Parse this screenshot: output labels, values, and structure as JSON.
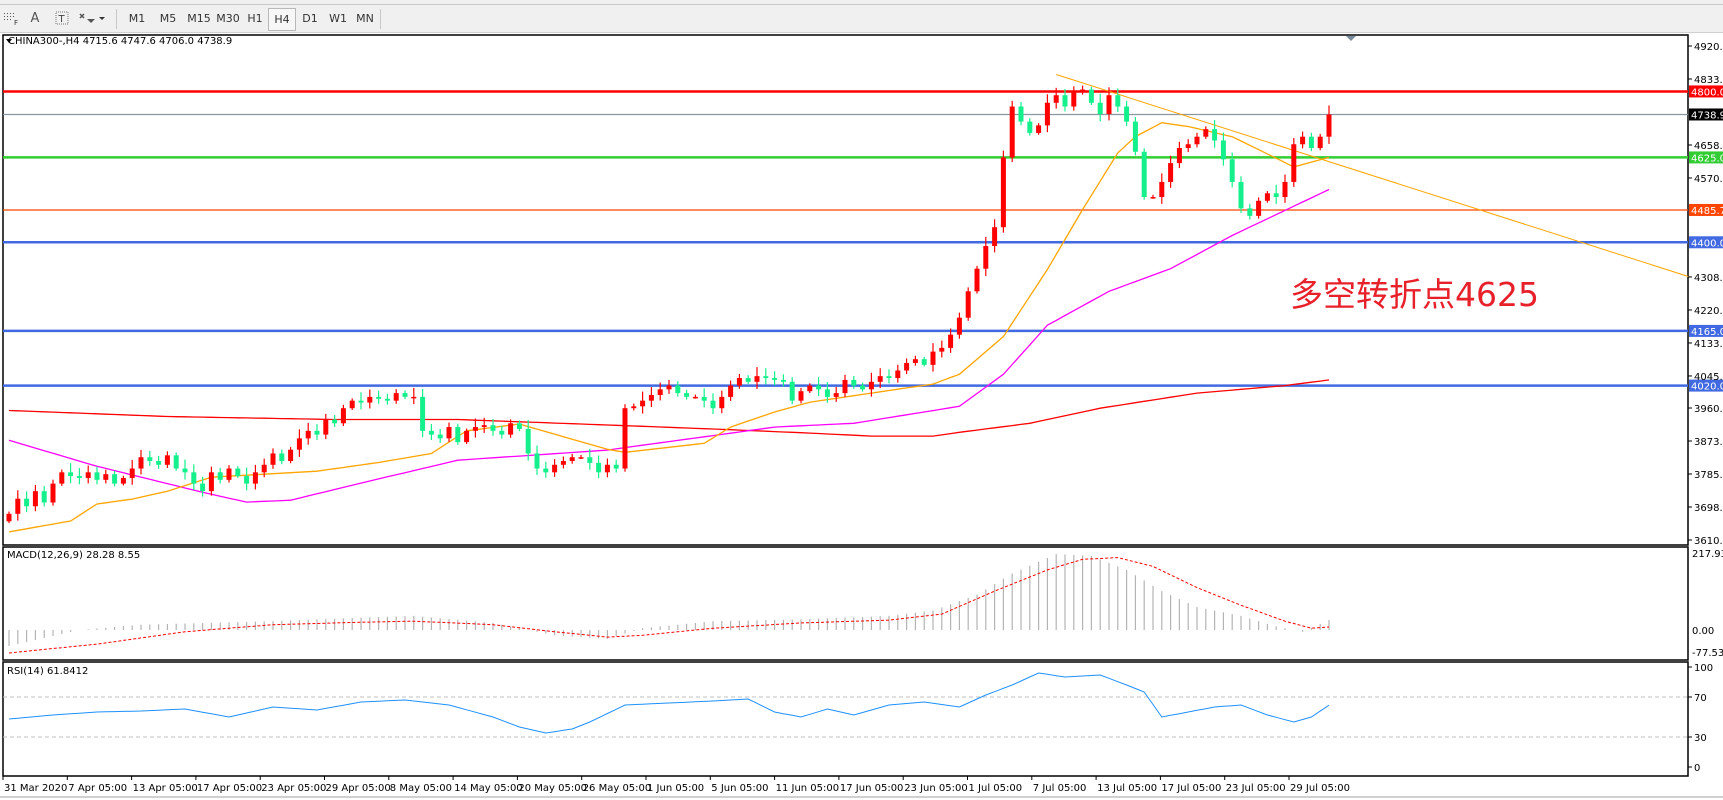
{
  "toolbar": {
    "icons": [
      "grid-f-icon",
      "text-a-icon",
      "text-box-icon",
      "arrows-icon"
    ],
    "timeframes": [
      "M1",
      "M5",
      "M15",
      "M30",
      "H1",
      "H4",
      "D1",
      "W1",
      "MN"
    ],
    "selected": "H4"
  },
  "header": {
    "symbol_line": "CHINA300-,H4  4715.6 4747.6 4706.0 4738.9"
  },
  "annotation": "多空转折点4625",
  "colors": {
    "bull": "#ff0000",
    "bear": "#14f08c",
    "ma_fast": "#ffa500",
    "ma_mid": "#ff00ff",
    "ma_slow": "#ff0000",
    "trendline": "#ffa500",
    "macd_hist": "#b4b4b4",
    "macd_signal": "#ff0000",
    "rsi": "#1e90ff"
  },
  "chart_data": {
    "type": "candlestick",
    "symbol": "CHINA300-",
    "timeframe": "H4",
    "first_open": 3660,
    "closes": [
      3680,
      3720,
      3700,
      3740,
      3710,
      3760,
      3790,
      3780,
      3775,
      3790,
      3770,
      3785,
      3760,
      3775,
      3800,
      3830,
      3820,
      3810,
      3835,
      3800,
      3790,
      3760,
      3740,
      3790,
      3770,
      3800,
      3780,
      3760,
      3790,
      3810,
      3840,
      3820,
      3850,
      3880,
      3900,
      3890,
      3930,
      3920,
      3960,
      3980,
      3975,
      3990,
      3985,
      3980,
      4000,
      3990,
      3990,
      3900,
      3890,
      3880,
      3910,
      3870,
      3900,
      3910,
      3915,
      3900,
      3890,
      3920,
      3905,
      3840,
      3800,
      3790,
      3810,
      3820,
      3830,
      3830,
      3815,
      3790,
      3810,
      3800,
      3960,
      3965,
      3980,
      3995,
      4010,
      4020,
      4000,
      3990,
      3990,
      3980,
      3960,
      3990,
      4020,
      4040,
      4030,
      4045,
      4040,
      4035,
      4030,
      3980,
      4005,
      4020,
      4010,
      3990,
      4000,
      4035,
      4020,
      4010,
      4030,
      4045,
      4040,
      4060,
      4080,
      4090,
      4075,
      4110,
      4120,
      4155,
      4200,
      4270,
      4330,
      4390,
      4440,
      4625,
      4760,
      4720,
      4690,
      4710,
      4770,
      4790,
      4760,
      4800,
      4805,
      4770,
      4740,
      4790,
      4760,
      4720,
      4640,
      4520,
      4520,
      4560,
      4610,
      4650,
      4660,
      4680,
      4700,
      4670,
      4620,
      4560,
      4490,
      4470,
      4510,
      4530,
      4520,
      4560,
      4660,
      4680,
      4650,
      4680,
      4738.9
    ],
    "ma_fast": [
      [
        0,
        3632
      ],
      [
        7,
        3661
      ],
      [
        10,
        3706
      ],
      [
        14,
        3719
      ],
      [
        18,
        3740
      ],
      [
        23,
        3777
      ],
      [
        35,
        3793
      ],
      [
        42,
        3816
      ],
      [
        48,
        3840
      ],
      [
        52,
        3900
      ],
      [
        58,
        3918
      ],
      [
        68,
        3851
      ],
      [
        70,
        3843
      ],
      [
        79,
        3867
      ],
      [
        82,
        3910
      ],
      [
        87,
        3950
      ],
      [
        91,
        3976
      ],
      [
        98,
        4000
      ],
      [
        105,
        4024
      ],
      [
        108,
        4050
      ],
      [
        113,
        4150
      ],
      [
        118,
        4328
      ],
      [
        122,
        4487
      ],
      [
        126,
        4637
      ],
      [
        128,
        4680
      ],
      [
        131,
        4717
      ],
      [
        134,
        4707
      ],
      [
        139,
        4680
      ],
      [
        146,
        4600
      ],
      [
        150,
        4625
      ]
    ],
    "ma_mid": [
      [
        0,
        3875
      ],
      [
        10,
        3806
      ],
      [
        22,
        3737
      ],
      [
        27,
        3711
      ],
      [
        32,
        3716
      ],
      [
        41,
        3767
      ],
      [
        51,
        3822
      ],
      [
        68,
        3849
      ],
      [
        83,
        3897
      ],
      [
        87,
        3910
      ],
      [
        96,
        3920
      ],
      [
        108,
        3965
      ],
      [
        113,
        4050
      ],
      [
        118,
        4180
      ],
      [
        125,
        4270
      ],
      [
        132,
        4330
      ],
      [
        139,
        4418
      ],
      [
        150,
        4540
      ]
    ],
    "ma_slow": [
      [
        0,
        3954
      ],
      [
        18,
        3938
      ],
      [
        37,
        3930
      ],
      [
        51,
        3930
      ],
      [
        72,
        3912
      ],
      [
        83,
        3902
      ],
      [
        91,
        3894
      ],
      [
        98,
        3886
      ],
      [
        105,
        3886
      ],
      [
        108,
        3896
      ],
      [
        116,
        3920
      ],
      [
        124,
        3960
      ],
      [
        135,
        4000
      ],
      [
        145,
        4020
      ],
      [
        150,
        4035
      ]
    ],
    "trendline": {
      "from": {
        "candle": 119,
        "price": 4845
      },
      "to": {
        "candle": 191,
        "price": 4308
      }
    },
    "levels": [
      {
        "price": 4800.0,
        "label": "4800.0",
        "color": "#ff0000",
        "bg": "#ff0000"
      },
      {
        "price": 4738.9,
        "label": "4738.9",
        "color": "#8c96a0",
        "bg": "#000000"
      },
      {
        "price": 4625.0,
        "label": "4625.0",
        "color": "#32cd32",
        "bg": "#32cd32"
      },
      {
        "price": 4485.7,
        "label": "4485.7",
        "color": "#ff4500",
        "bg": "#ff4500"
      },
      {
        "price": 4400.0,
        "label": "4400.0",
        "color": "#4169e1",
        "bg": "#4169e1"
      },
      {
        "price": 4165.0,
        "label": "4165.0",
        "color": "#4169e1",
        "bg": "#4169e1"
      },
      {
        "price": 4020.0,
        "label": "4020.0",
        "color": "#4169e1",
        "bg": "#4169e1"
      }
    ],
    "price_axis": {
      "range": [
        3610.5,
        4920.5
      ],
      "ticks": [
        "4920.5",
        "4833.0",
        "4658.0",
        "4570.5",
        "4308.0",
        "4220.5",
        "4133.0",
        "4045.5",
        "3960.5",
        "3873.0",
        "3785.5",
        "3698.0",
        "3610.5"
      ]
    },
    "time_axis": [
      "31 Mar 2020",
      "7 Apr 05:00",
      "13 Apr 05:00",
      "17 Apr 05:00",
      "23 Apr 05:00",
      "29 Apr 05:00",
      "8 May 05:00",
      "14 May 05:00",
      "20 May 05:00",
      "26 May 05:00",
      "1 Jun 05:00",
      "5 Jun 05:00",
      "11 Jun 05:00",
      "17 Jun 05:00",
      "23 Jun 05:00",
      "1 Jul 05:00",
      "7 Jul 05:00",
      "13 Jul 05:00",
      "17 Jul 05:00",
      "23 Jul 05:00",
      "29 Jul 05:00"
    ],
    "macd": {
      "title": "MACD(12,26,9) 28.28 8.55",
      "range": [
        -77.53,
        217.93
      ],
      "ticks": [
        "217.93",
        "0.00",
        "-77.53"
      ],
      "main": [
        [
          0,
          -45
        ],
        [
          8,
          0
        ],
        [
          15,
          15
        ],
        [
          30,
          25
        ],
        [
          40,
          35
        ],
        [
          46,
          40
        ],
        [
          55,
          20
        ],
        [
          62,
          -15
        ],
        [
          68,
          -25
        ],
        [
          72,
          5
        ],
        [
          80,
          25
        ],
        [
          90,
          30
        ],
        [
          100,
          40
        ],
        [
          105,
          55
        ],
        [
          110,
          100
        ],
        [
          114,
          160
        ],
        [
          119,
          215
        ],
        [
          123,
          210
        ],
        [
          127,
          170
        ],
        [
          131,
          110
        ],
        [
          135,
          65
        ],
        [
          140,
          40
        ],
        [
          144,
          10
        ],
        [
          147,
          -5
        ],
        [
          150,
          28.28
        ]
      ],
      "signal": [
        [
          0,
          -65
        ],
        [
          10,
          -40
        ],
        [
          20,
          -5
        ],
        [
          30,
          15
        ],
        [
          40,
          22
        ],
        [
          46,
          25
        ],
        [
          55,
          15
        ],
        [
          62,
          -5
        ],
        [
          68,
          -20
        ],
        [
          72,
          -15
        ],
        [
          80,
          5
        ],
        [
          90,
          20
        ],
        [
          100,
          28
        ],
        [
          106,
          45
        ],
        [
          112,
          110
        ],
        [
          118,
          170
        ],
        [
          122,
          200
        ],
        [
          126,
          205
        ],
        [
          130,
          180
        ],
        [
          135,
          120
        ],
        [
          140,
          70
        ],
        [
          145,
          25
        ],
        [
          148,
          5
        ],
        [
          150,
          8.55
        ]
      ]
    },
    "rsi": {
      "title": "RSI(14) 61.8412",
      "range": [
        0,
        100
      ],
      "ticks": [
        "100",
        "70",
        "30",
        "0"
      ],
      "levels": [
        70,
        30
      ],
      "values": [
        [
          0,
          48
        ],
        [
          5,
          52
        ],
        [
          10,
          55
        ],
        [
          15,
          56
        ],
        [
          20,
          58
        ],
        [
          25,
          50
        ],
        [
          30,
          60
        ],
        [
          35,
          57
        ],
        [
          40,
          65
        ],
        [
          45,
          67
        ],
        [
          50,
          62
        ],
        [
          55,
          50
        ],
        [
          58,
          40
        ],
        [
          61,
          34
        ],
        [
          64,
          38
        ],
        [
          66,
          45
        ],
        [
          70,
          62
        ],
        [
          75,
          64
        ],
        [
          80,
          66
        ],
        [
          84,
          68
        ],
        [
          87,
          55
        ],
        [
          90,
          50
        ],
        [
          93,
          58
        ],
        [
          96,
          52
        ],
        [
          100,
          62
        ],
        [
          104,
          65
        ],
        [
          108,
          60
        ],
        [
          111,
          72
        ],
        [
          114,
          82
        ],
        [
          117,
          94
        ],
        [
          120,
          90
        ],
        [
          124,
          92
        ],
        [
          127,
          82
        ],
        [
          129,
          75
        ],
        [
          131,
          50
        ],
        [
          134,
          55
        ],
        [
          137,
          60
        ],
        [
          140,
          62
        ],
        [
          143,
          52
        ],
        [
          146,
          45
        ],
        [
          148,
          50
        ],
        [
          150,
          61.84
        ]
      ]
    }
  }
}
